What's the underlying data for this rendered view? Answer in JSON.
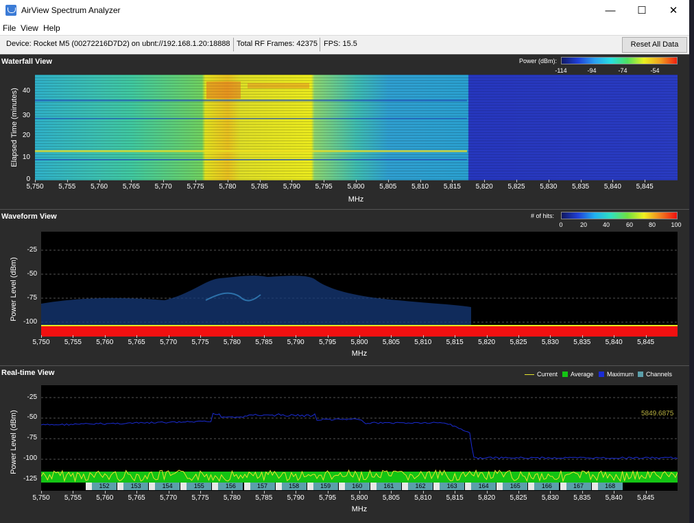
{
  "window": {
    "title": "AirView Spectrum Analyzer",
    "minimize": "—",
    "maximize": "☐",
    "close": "✕"
  },
  "menu": [
    "File",
    "View",
    "Help"
  ],
  "status": {
    "device": "Device: Rocket M5 (00272216D7D2) on ubnt://192.168.1.20:18888",
    "frames": "Total RF Frames: 42375",
    "fps": "FPS: 15.5",
    "reset_label": "Reset All Data"
  },
  "x_axis": {
    "label": "MHz",
    "ticks": [
      "5,750",
      "5,755",
      "5,760",
      "5,765",
      "5,770",
      "5,775",
      "5,780",
      "5,785",
      "5,790",
      "5,795",
      "5,800",
      "5,805",
      "5,810",
      "5,815",
      "5,820",
      "5,825",
      "5,830",
      "5,835",
      "5,840",
      "5,845"
    ]
  },
  "waterfall": {
    "title": "Waterfall View",
    "ylabel": "Elapsed Time (minutes)",
    "yticks": [
      "40",
      "30",
      "20",
      "10",
      "0"
    ],
    "legend_label": "Power (dBm):",
    "legend_ticks": [
      "-114",
      "-94",
      "-74",
      "-54"
    ]
  },
  "waveform": {
    "title": "Waveform View",
    "ylabel": "Power Level (dBm)",
    "yticks": [
      "-25",
      "-50",
      "-75",
      "-100"
    ],
    "legend_label": "# of hits:",
    "legend_ticks": [
      "0",
      "20",
      "40",
      "60",
      "80",
      "100"
    ]
  },
  "realtime": {
    "title": "Real-time View",
    "ylabel": "Power Level (dBm)",
    "yticks": [
      "-25",
      "-50",
      "-75",
      "-100",
      "-125"
    ],
    "legend": {
      "current": "Current",
      "average": "Average",
      "maximum": "Maximum",
      "channels": "Channels"
    },
    "readout": "5849.6875",
    "channels": [
      "152",
      "153",
      "154",
      "155",
      "156",
      "157",
      "158",
      "159",
      "160",
      "161",
      "162",
      "163",
      "164",
      "165",
      "166",
      "167",
      "168"
    ]
  },
  "colors": {
    "current": "#e6e62e",
    "average": "#14c414",
    "maximum": "#1a2cd6",
    "channels": "#5b9faa",
    "readout": "#b8b040"
  }
}
